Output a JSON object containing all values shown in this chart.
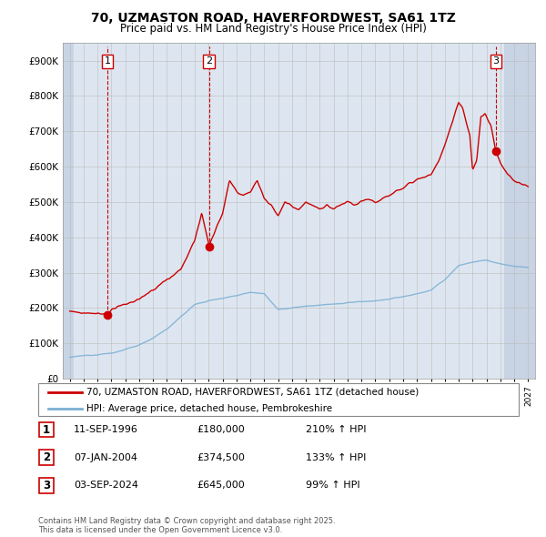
{
  "title": "70, UZMASTON ROAD, HAVERFORDWEST, SA61 1TZ",
  "subtitle": "Price paid vs. HM Land Registry's House Price Index (HPI)",
  "legend_line1": "70, UZMASTON ROAD, HAVERFORDWEST, SA61 1TZ (detached house)",
  "legend_line2": "HPI: Average price, detached house, Pembrokeshire",
  "transactions": [
    {
      "num": 1,
      "date": "11-SEP-1996",
      "price": "£180,000",
      "hpi": "210% ↑ HPI",
      "year": 1996.7,
      "price_val": 180000
    },
    {
      "num": 2,
      "date": "07-JAN-2004",
      "price": "£374,500",
      "hpi": "133% ↑ HPI",
      "year": 2004.03,
      "price_val": 374500
    },
    {
      "num": 3,
      "date": "03-SEP-2024",
      "price": "£645,000",
      "hpi": "99% ↑ HPI",
      "year": 2024.67,
      "price_val": 645000
    }
  ],
  "footer": "Contains HM Land Registry data © Crown copyright and database right 2025.\nThis data is licensed under the Open Government Licence v3.0.",
  "xmin": 1993.5,
  "xmax": 2027.5,
  "ymin": 0,
  "ymax": 950000,
  "yticks": [
    0,
    100000,
    200000,
    300000,
    400000,
    500000,
    600000,
    700000,
    800000,
    900000
  ],
  "ytick_labels": [
    "£0",
    "£100K",
    "£200K",
    "£300K",
    "£400K",
    "£500K",
    "£600K",
    "£700K",
    "£800K",
    "£900K"
  ],
  "bg_color": "#dde6f0",
  "hatch_color": "#c8d4e4",
  "grid_color": "#bbbbbb",
  "red_color": "#cc0000",
  "blue_color": "#7bafd4",
  "hatch_xmin1": 1993.5,
  "hatch_xmax1": 1994.3,
  "hatch_xmin2": 2025.3,
  "hatch_xmax2": 2027.5
}
